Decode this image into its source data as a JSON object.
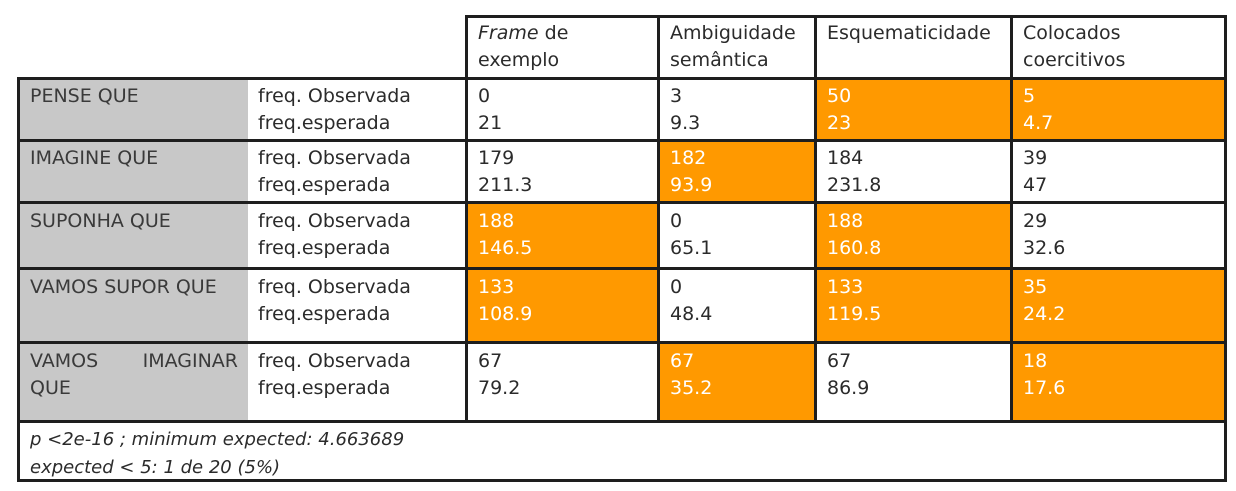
{
  "header": {
    "col1_prefix": "Frame",
    "col1_suffix": " de",
    "col1_line2": "exemplo",
    "col2_line1": "Ambiguidade",
    "col2_line2": "semântica",
    "col3_line1": "Esquematicidade",
    "col4_line1": "Colocados",
    "col4_line2": "coercitivos"
  },
  "labels": {
    "observed": "freq. Observada",
    "expected": "freq.esperada"
  },
  "rows": [
    {
      "name": "PENSE QUE",
      "cells": [
        {
          "obs": "0",
          "exp": "21"
        },
        {
          "obs": "3",
          "exp": "9.3"
        },
        {
          "obs": "50",
          "exp": "23"
        },
        {
          "obs": "5",
          "exp": "4.7"
        }
      ]
    },
    {
      "name": "IMAGINE QUE",
      "cells": [
        {
          "obs": "179",
          "exp": "211.3"
        },
        {
          "obs": "182",
          "exp": "93.9"
        },
        {
          "obs": "184",
          "exp": "231.8"
        },
        {
          "obs": "39",
          "exp": "47"
        }
      ]
    },
    {
      "name": "SUPONHA QUE",
      "cells": [
        {
          "obs": "188",
          "exp": "146.5"
        },
        {
          "obs": "0",
          "exp": "65.1"
        },
        {
          "obs": "188",
          "exp": "160.8"
        },
        {
          "obs": "29",
          "exp": "32.6"
        }
      ]
    },
    {
      "name": "VAMOS SUPOR QUE",
      "cells": [
        {
          "obs": "133",
          "exp": "108.9"
        },
        {
          "obs": "0",
          "exp": "48.4"
        },
        {
          "obs": "133",
          "exp": "119.5"
        },
        {
          "obs": "35",
          "exp": "24.2"
        }
      ]
    },
    {
      "name_line1_a": "VAMOS",
      "name_line1_b": "IMAGINAR",
      "name_line2": "QUE",
      "cells": [
        {
          "obs": "67",
          "exp": "79.2"
        },
        {
          "obs": "67",
          "exp": "35.2"
        },
        {
          "obs": "67",
          "exp": "86.9"
        },
        {
          "obs": "18",
          "exp": "17.6"
        }
      ]
    }
  ],
  "highlight_color": "#ff9900",
  "row_label_color": "#c8c8c8",
  "footnote": {
    "line1": "p <2e-16 ; minimum expected: 4.663689",
    "line2": "expected < 5: 1 de 20 (5%)"
  }
}
